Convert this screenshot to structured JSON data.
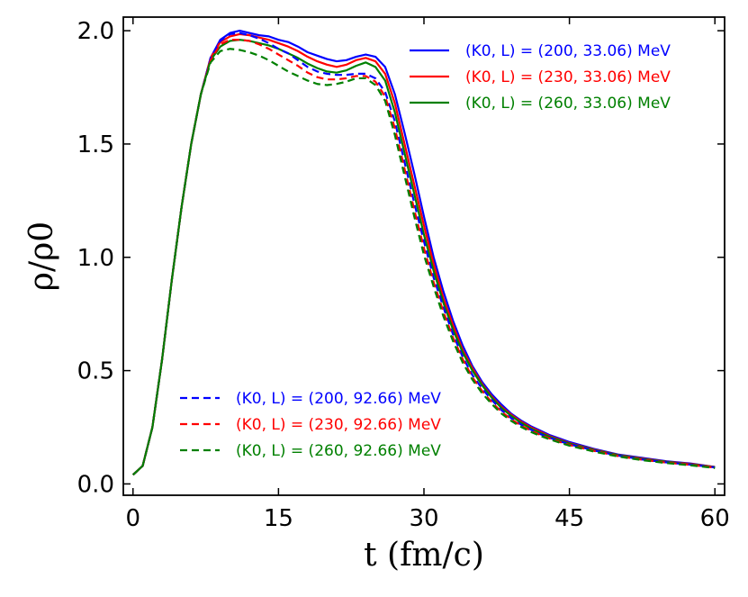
{
  "chart_data": {
    "type": "line",
    "xlabel": "t (fm/c)",
    "ylabel": "ρ/ρ0",
    "xlim": [
      -1,
      61
    ],
    "ylim": [
      -0.05,
      2.06
    ],
    "xticks": [
      0,
      15,
      30,
      45,
      60
    ],
    "yticks": [
      0.0,
      0.5,
      1.0,
      1.5,
      2.0
    ],
    "xtick_labels": [
      "0",
      "15",
      "30",
      "45",
      "60"
    ],
    "ytick_labels": [
      "0.0",
      "0.5",
      "1.0",
      "1.5",
      "2.0"
    ],
    "legends": [
      {
        "placement": "top-right",
        "series_names": [
          "K0_200_L_33.06",
          "K0_230_L_33.06",
          "K0_260_L_33.06"
        ]
      },
      {
        "placement": "bottom-left",
        "series_names": [
          "K0_200_L_92.66",
          "K0_230_L_92.66",
          "K0_260_L_92.66"
        ]
      }
    ],
    "series": [
      {
        "name": "K0_200_L_33.06",
        "label": "(K0, L) = (200, 33.06) MeV",
        "color": "#0000ff",
        "style": "solid",
        "x": [
          0,
          1,
          2,
          3,
          4,
          5,
          6,
          7,
          8,
          9,
          10,
          11,
          12,
          13,
          14,
          15,
          16,
          17,
          18,
          19,
          20,
          21,
          22,
          23,
          24,
          25,
          26,
          27,
          28,
          29,
          30,
          31,
          32,
          33,
          34,
          35,
          36,
          37,
          38,
          39,
          40,
          41,
          42,
          43,
          44,
          45,
          47.5,
          50,
          52.5,
          55,
          57.5,
          60
        ],
        "y": [
          0.04,
          0.08,
          0.25,
          0.55,
          0.9,
          1.22,
          1.5,
          1.72,
          1.88,
          1.96,
          1.99,
          2.0,
          1.99,
          1.98,
          1.975,
          1.96,
          1.95,
          1.93,
          1.905,
          1.89,
          1.875,
          1.865,
          1.87,
          1.885,
          1.895,
          1.885,
          1.84,
          1.72,
          1.55,
          1.37,
          1.18,
          1.0,
          0.85,
          0.72,
          0.61,
          0.52,
          0.45,
          0.395,
          0.35,
          0.31,
          0.28,
          0.255,
          0.235,
          0.215,
          0.2,
          0.185,
          0.155,
          0.13,
          0.115,
          0.1,
          0.09,
          0.075
        ]
      },
      {
        "name": "K0_230_L_33.06",
        "label": "(K0, L) = (230, 33.06) MeV",
        "color": "#ff0000",
        "style": "solid",
        "x": [
          0,
          1,
          2,
          3,
          4,
          5,
          6,
          7,
          8,
          9,
          10,
          11,
          12,
          13,
          14,
          15,
          16,
          17,
          18,
          19,
          20,
          21,
          22,
          23,
          24,
          25,
          26,
          27,
          28,
          29,
          30,
          31,
          32,
          33,
          34,
          35,
          36,
          37,
          38,
          39,
          40,
          41,
          42,
          43,
          44,
          45,
          47.5,
          50,
          52.5,
          55,
          57.5,
          60
        ],
        "y": [
          0.04,
          0.08,
          0.25,
          0.55,
          0.9,
          1.22,
          1.5,
          1.72,
          1.88,
          1.95,
          1.975,
          1.985,
          1.98,
          1.97,
          1.96,
          1.945,
          1.93,
          1.91,
          1.885,
          1.865,
          1.85,
          1.84,
          1.85,
          1.87,
          1.88,
          1.865,
          1.81,
          1.68,
          1.5,
          1.32,
          1.14,
          0.97,
          0.82,
          0.7,
          0.59,
          0.51,
          0.44,
          0.385,
          0.34,
          0.305,
          0.275,
          0.25,
          0.23,
          0.21,
          0.195,
          0.18,
          0.152,
          0.128,
          0.112,
          0.098,
          0.088,
          0.075
        ]
      },
      {
        "name": "K0_260_L_33.06",
        "label": "(K0, L) = (260, 33.06) MeV",
        "color": "#008000",
        "style": "solid",
        "x": [
          0,
          1,
          2,
          3,
          4,
          5,
          6,
          7,
          8,
          9,
          10,
          11,
          12,
          13,
          14,
          15,
          16,
          17,
          18,
          19,
          20,
          21,
          22,
          23,
          24,
          25,
          26,
          27,
          28,
          29,
          30,
          31,
          32,
          33,
          34,
          35,
          36,
          37,
          38,
          39,
          40,
          41,
          42,
          43,
          44,
          45,
          47.5,
          50,
          52.5,
          55,
          57.5,
          60
        ],
        "y": [
          0.04,
          0.08,
          0.25,
          0.55,
          0.9,
          1.22,
          1.5,
          1.72,
          1.87,
          1.93,
          1.955,
          1.96,
          1.955,
          1.945,
          1.935,
          1.92,
          1.9,
          1.88,
          1.855,
          1.835,
          1.82,
          1.815,
          1.825,
          1.845,
          1.86,
          1.84,
          1.78,
          1.64,
          1.46,
          1.28,
          1.1,
          0.94,
          0.8,
          0.68,
          0.58,
          0.5,
          0.435,
          0.38,
          0.335,
          0.3,
          0.27,
          0.245,
          0.225,
          0.207,
          0.192,
          0.178,
          0.15,
          0.127,
          0.11,
          0.097,
          0.086,
          0.074
        ]
      },
      {
        "name": "K0_200_L_92.66",
        "label": "(K0, L) = (200, 92.66) MeV",
        "color": "#0000ff",
        "style": "dashed",
        "x": [
          0,
          1,
          2,
          3,
          4,
          5,
          6,
          7,
          8,
          9,
          10,
          11,
          12,
          13,
          14,
          15,
          16,
          17,
          18,
          19,
          20,
          21,
          22,
          23,
          24,
          25,
          26,
          27,
          28,
          29,
          30,
          31,
          32,
          33,
          34,
          35,
          36,
          37,
          38,
          39,
          40,
          41,
          42,
          43,
          44,
          45,
          47.5,
          50,
          52.5,
          55,
          57.5,
          60
        ],
        "y": [
          0.04,
          0.08,
          0.25,
          0.55,
          0.9,
          1.22,
          1.5,
          1.72,
          1.88,
          1.955,
          1.985,
          1.99,
          1.98,
          1.965,
          1.945,
          1.92,
          1.9,
          1.87,
          1.84,
          1.82,
          1.81,
          1.805,
          1.805,
          1.81,
          1.81,
          1.79,
          1.73,
          1.6,
          1.42,
          1.24,
          1.07,
          0.91,
          0.78,
          0.66,
          0.56,
          0.48,
          0.42,
          0.37,
          0.325,
          0.29,
          0.262,
          0.24,
          0.22,
          0.203,
          0.188,
          0.175,
          0.148,
          0.125,
          0.108,
          0.095,
          0.085,
          0.073
        ]
      },
      {
        "name": "K0_230_L_92.66",
        "label": "(K0, L) = (230, 92.66) MeV",
        "color": "#ff0000",
        "style": "dashed",
        "x": [
          0,
          1,
          2,
          3,
          4,
          5,
          6,
          7,
          8,
          9,
          10,
          11,
          12,
          13,
          14,
          15,
          16,
          17,
          18,
          19,
          20,
          21,
          22,
          23,
          24,
          25,
          26,
          27,
          28,
          29,
          30,
          31,
          32,
          33,
          34,
          35,
          36,
          37,
          38,
          39,
          40,
          41,
          42,
          43,
          44,
          45,
          47.5,
          50,
          52.5,
          55,
          57.5,
          60
        ],
        "y": [
          0.04,
          0.08,
          0.25,
          0.55,
          0.9,
          1.22,
          1.5,
          1.72,
          1.87,
          1.94,
          1.96,
          1.96,
          1.955,
          1.94,
          1.92,
          1.895,
          1.87,
          1.845,
          1.815,
          1.795,
          1.785,
          1.785,
          1.79,
          1.8,
          1.8,
          1.775,
          1.71,
          1.57,
          1.39,
          1.21,
          1.04,
          0.89,
          0.76,
          0.645,
          0.55,
          0.47,
          0.41,
          0.36,
          0.318,
          0.285,
          0.258,
          0.236,
          0.216,
          0.2,
          0.185,
          0.172,
          0.146,
          0.123,
          0.107,
          0.094,
          0.084,
          0.072
        ]
      },
      {
        "name": "K0_260_L_92.66",
        "label": "(K0, L) = (260, 92.66) MeV",
        "color": "#008000",
        "style": "dashed",
        "x": [
          0,
          1,
          2,
          3,
          4,
          5,
          6,
          7,
          8,
          9,
          10,
          11,
          12,
          13,
          14,
          15,
          16,
          17,
          18,
          19,
          20,
          21,
          22,
          23,
          24,
          25,
          26,
          27,
          28,
          29,
          30,
          31,
          32,
          33,
          34,
          35,
          36,
          37,
          38,
          39,
          40,
          41,
          42,
          43,
          44,
          45,
          47.5,
          50,
          52.5,
          55,
          57.5,
          60
        ],
        "y": [
          0.04,
          0.08,
          0.25,
          0.55,
          0.9,
          1.22,
          1.5,
          1.72,
          1.86,
          1.91,
          1.92,
          1.915,
          1.905,
          1.89,
          1.87,
          1.845,
          1.82,
          1.8,
          1.78,
          1.765,
          1.76,
          1.765,
          1.775,
          1.79,
          1.79,
          1.76,
          1.69,
          1.54,
          1.36,
          1.18,
          1.01,
          0.87,
          0.74,
          0.63,
          0.535,
          0.46,
          0.4,
          0.352,
          0.31,
          0.278,
          0.252,
          0.23,
          0.212,
          0.196,
          0.182,
          0.169,
          0.143,
          0.121,
          0.105,
          0.092,
          0.082,
          0.07
        ]
      }
    ]
  }
}
